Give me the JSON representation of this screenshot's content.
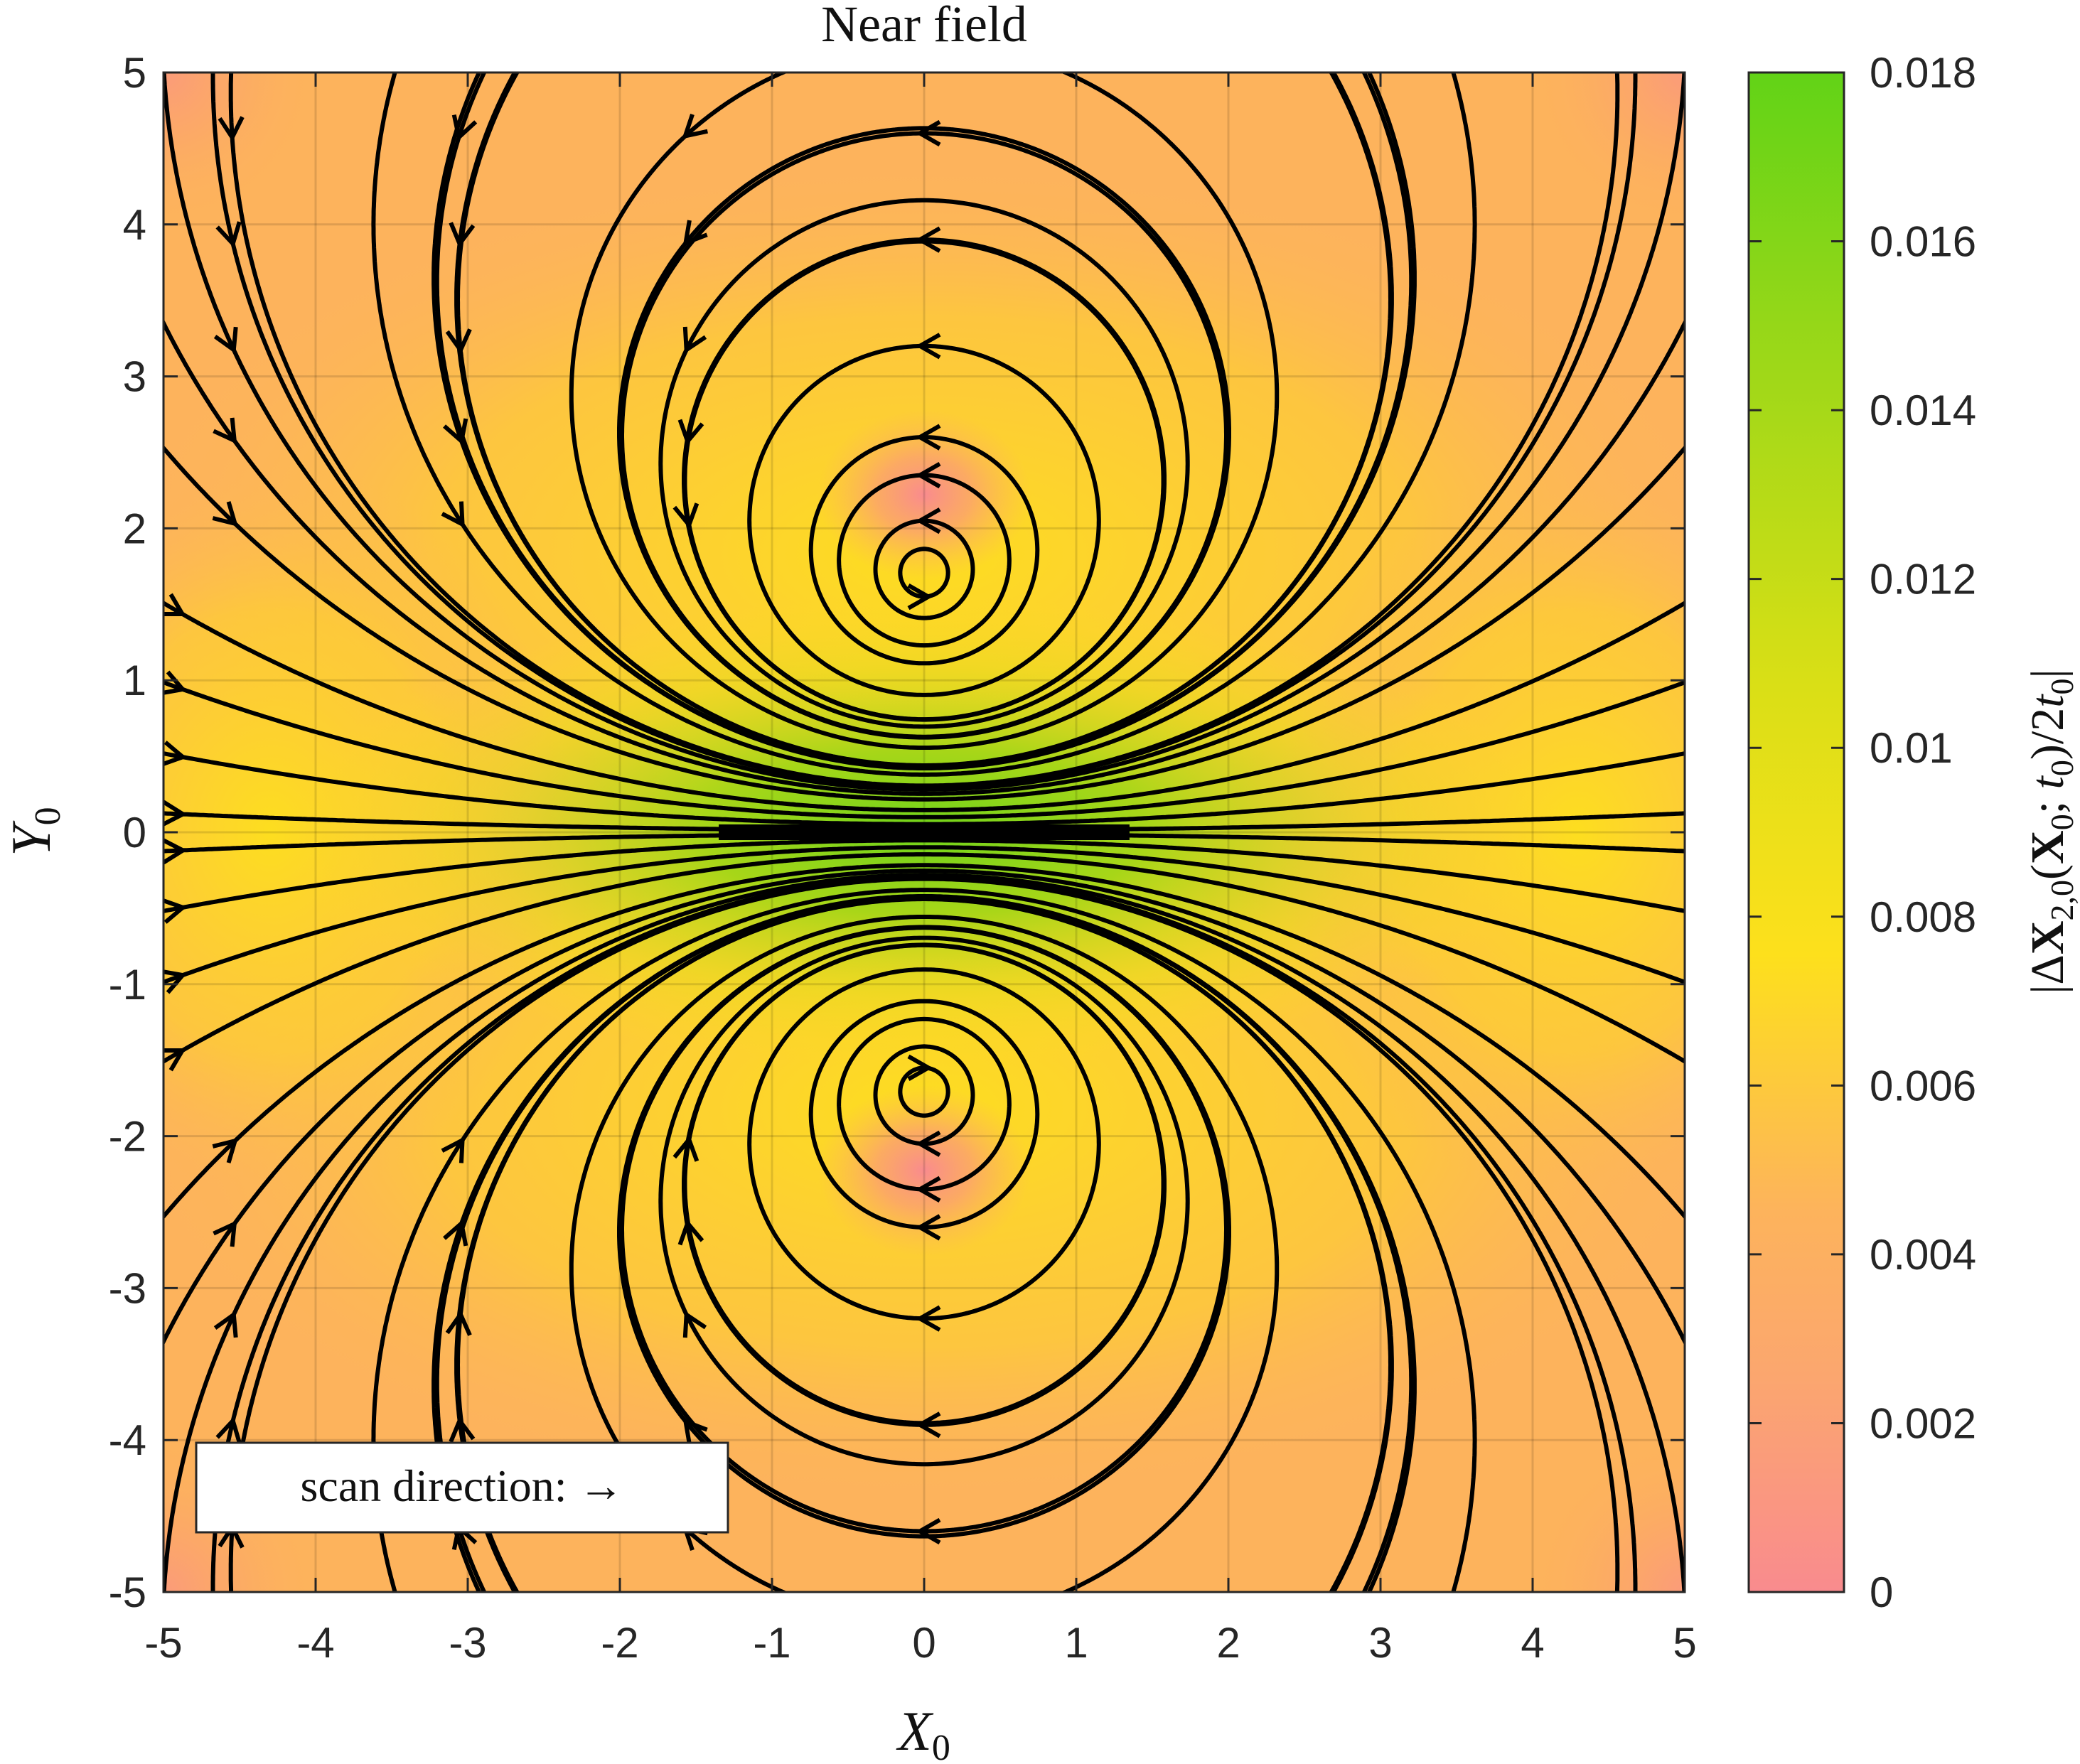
{
  "chart_data": {
    "type": "heatmap",
    "title": "Near field",
    "xlabel": "X0",
    "ylabel": "Y0",
    "colorbar_label": "|ΔX2,0(X0;t0)/2t0|",
    "xlim": [
      -5,
      5
    ],
    "ylim": [
      -5,
      5
    ],
    "xticks": [
      "-5",
      "-4",
      "-3",
      "-2",
      "-1",
      "0",
      "1",
      "2",
      "3",
      "4",
      "5"
    ],
    "yticks": [
      "5",
      "4",
      "3",
      "2",
      "1",
      "0",
      "-1",
      "-2",
      "-3",
      "-4",
      "-5"
    ],
    "colorbar_range": [
      0,
      0.018
    ],
    "colorbar_ticks": [
      "0",
      "0.002",
      "0.004",
      "0.006",
      "0.008",
      "0.01",
      "0.012",
      "0.014",
      "0.016",
      "0.018"
    ],
    "colormap": [
      "#f98b8e",
      "#fdb36a",
      "#fde01c",
      "#c2dd18",
      "#62d317"
    ],
    "grid": true,
    "overlay": "streamlines (dipole-like flow, arrows pointing in +X0 near Y0 = 0)",
    "vortex_centers": [
      {
        "x": 0,
        "y": 2.25
      },
      {
        "x": 0,
        "y": -2.25
      }
    ],
    "scatterer_segment": {
      "x": [
        -1.35,
        1.35
      ],
      "y": 0
    },
    "annotation": "scan direction: →"
  }
}
